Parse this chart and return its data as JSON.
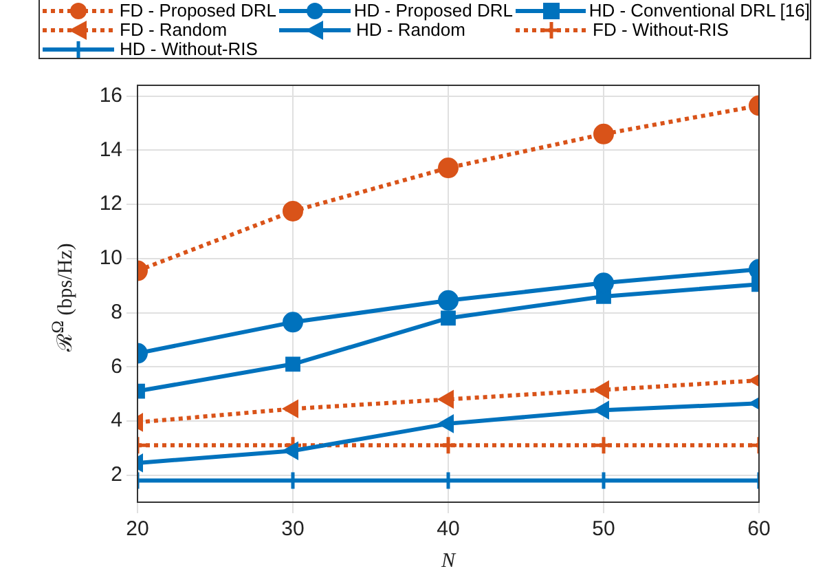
{
  "chart_data": {
    "type": "line",
    "xlabel": "N",
    "ylabel": "ℛ$^{Ω}$ (bps/Hz)",
    "x": [
      20,
      30,
      40,
      50,
      60
    ],
    "xlim": [
      20,
      60
    ],
    "xticks": [
      20,
      30,
      40,
      50,
      60
    ],
    "ylim": [
      1,
      16.4
    ],
    "yticks": [
      2,
      4,
      6,
      8,
      10,
      12,
      14,
      16
    ],
    "grid": true,
    "legend": "top",
    "series": [
      {
        "name": "FD - Proposed DRL",
        "color": "#d95319",
        "marker": "circle",
        "line_style": "dotted",
        "values": [
          9.55,
          11.75,
          13.35,
          14.6,
          15.65
        ]
      },
      {
        "name": "HD - Proposed DRL",
        "color": "#0072bd",
        "marker": "circle",
        "line_style": "solid",
        "values": [
          6.5,
          7.65,
          8.45,
          9.1,
          9.6
        ]
      },
      {
        "name": "HD - Conventional DRL [16]",
        "color": "#0072bd",
        "marker": "square",
        "line_style": "solid",
        "values": [
          5.1,
          6.1,
          7.8,
          8.6,
          9.05
        ]
      },
      {
        "name": "FD - Random",
        "color": "#d95319",
        "marker": "triangle",
        "line_style": "dotted",
        "values": [
          3.95,
          4.45,
          4.8,
          5.15,
          5.5
        ]
      },
      {
        "name": "HD - Random",
        "color": "#0072bd",
        "marker": "triangle",
        "line_style": "solid",
        "values": [
          2.45,
          2.9,
          3.9,
          4.4,
          4.65
        ]
      },
      {
        "name": "FD - Without-RIS",
        "color": "#d95319",
        "marker": "cross",
        "line_style": "dotted",
        "values": [
          3.1,
          3.1,
          3.1,
          3.1,
          3.1
        ]
      },
      {
        "name": "HD - Without-RIS",
        "color": "#0072bd",
        "marker": "cross",
        "line_style": "solid",
        "values": [
          1.8,
          1.8,
          1.8,
          1.8,
          1.8
        ]
      }
    ]
  }
}
